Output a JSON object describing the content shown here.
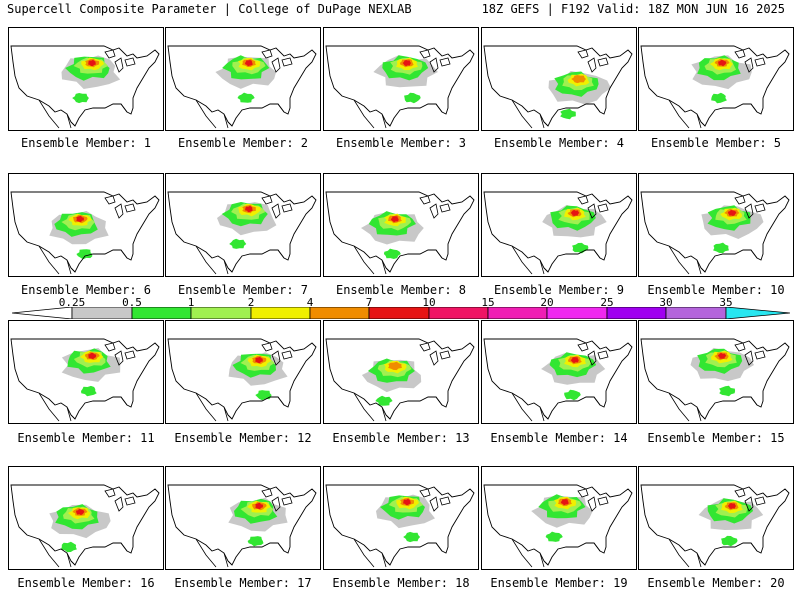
{
  "header": {
    "left_title": "Supercell Composite Parameter | College of DuPage NEXLAB",
    "right_title": "18Z GEFS | F192 Valid: 18Z MON JUN 16 2025"
  },
  "members": [
    {
      "label": "Ensemble Member: 1",
      "focus": "upper-midwest",
      "peak": "red"
    },
    {
      "label": "Ensemble Member: 2",
      "focus": "upper-midwest",
      "peak": "red"
    },
    {
      "label": "Ensemble Member: 3",
      "focus": "upper-midwest",
      "peak": "red"
    },
    {
      "label": "Ensemble Member: 4",
      "focus": "ohio-valley",
      "peak": "orange"
    },
    {
      "label": "Ensemble Member: 5",
      "focus": "upper-midwest",
      "peak": "red"
    },
    {
      "label": "Ensemble Member: 6",
      "focus": "central-plains",
      "peak": "red"
    },
    {
      "label": "Ensemble Member: 7",
      "focus": "upper-midwest",
      "peak": "red"
    },
    {
      "label": "Ensemble Member: 8",
      "focus": "central-plains",
      "peak": "red"
    },
    {
      "label": "Ensemble Member: 9",
      "focus": "great-lakes",
      "peak": "red"
    },
    {
      "label": "Ensemble Member: 10",
      "focus": "great-lakes",
      "peak": "red"
    },
    {
      "label": "Ensemble Member: 11",
      "focus": "upper-midwest",
      "peak": "red"
    },
    {
      "label": "Ensemble Member: 12",
      "focus": "great-lakes",
      "peak": "red"
    },
    {
      "label": "Ensemble Member: 13",
      "focus": "central-plains",
      "peak": "orange"
    },
    {
      "label": "Ensemble Member: 14",
      "focus": "great-lakes",
      "peak": "red"
    },
    {
      "label": "Ensemble Member: 15",
      "focus": "upper-midwest",
      "peak": "red"
    },
    {
      "label": "Ensemble Member: 16",
      "focus": "central-plains",
      "peak": "red"
    },
    {
      "label": "Ensemble Member: 17",
      "focus": "great-lakes",
      "peak": "red"
    },
    {
      "label": "Ensemble Member: 18",
      "focus": "upper-midwest",
      "peak": "red"
    },
    {
      "label": "Ensemble Member: 19",
      "focus": "upper-midwest",
      "peak": "red"
    },
    {
      "label": "Ensemble Member: 20",
      "focus": "great-lakes",
      "peak": "red"
    }
  ],
  "colorbar": {
    "ticks": [
      "0.25",
      "0.5",
      "1",
      "2",
      "4",
      "7",
      "10",
      "15",
      "20",
      "25",
      "30",
      "35"
    ],
    "colors": [
      "#c8c8c8",
      "#32e632",
      "#a0f050",
      "#f0f000",
      "#f08c00",
      "#e61414",
      "#f01464",
      "#f01eb4",
      "#f028f0",
      "#a000f0",
      "#b464dc",
      "#28e6f0"
    ]
  },
  "palette": {
    "0.25": "#c8c8c8",
    "0.5": "#32e632",
    "1": "#a0f050",
    "2": "#f0f000",
    "4": "#f08c00",
    "7": "#e61414",
    "10": "#f01464"
  }
}
